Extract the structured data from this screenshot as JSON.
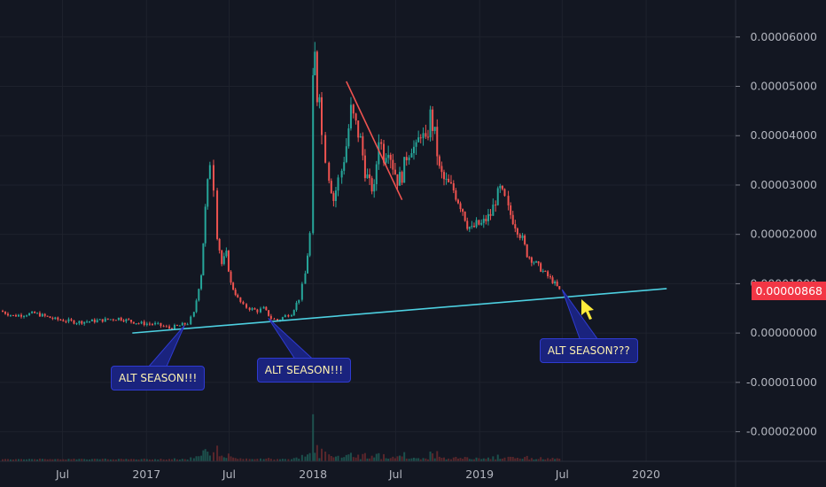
{
  "chart_data": {
    "type": "candlestick",
    "title": "",
    "xlabel": "",
    "ylabel": "",
    "y_axis_position": "right",
    "y_ticks": [
      "0.00006000",
      "0.00005000",
      "0.00004000",
      "0.00003000",
      "0.00002000",
      "0.00001000",
      "0.00000000",
      "-0.00001000",
      "-0.00002000"
    ],
    "y_tick_values": [
      6e-05,
      5e-05,
      4e-05,
      3e-05,
      2e-05,
      1e-05,
      0,
      -1e-05,
      -2e-05
    ],
    "ylim": [
      -2.6e-05,
      6.75e-05
    ],
    "x_ticks": [
      "Jul",
      "2017",
      "Jul",
      "2018",
      "Jul",
      "2019",
      "Jul",
      "2020"
    ],
    "x_tick_dates": [
      "2016-07-01",
      "2017-01-01",
      "2017-07-01",
      "2018-01-01",
      "2018-07-01",
      "2019-01-01",
      "2019-07-01",
      "2020-01-01"
    ],
    "xlim": [
      "2016-02-15",
      "2020-07-15"
    ],
    "grid": true,
    "last_price": "0.00000868",
    "price_series": {
      "dates": [
        "2016-02-15",
        "2016-03-15",
        "2016-05-01",
        "2016-06-15",
        "2016-08-01",
        "2016-09-15",
        "2016-11-01",
        "2016-12-15",
        "2017-01-20",
        "2017-02-20",
        "2017-03-15",
        "2017-04-01",
        "2017-04-15",
        "2017-05-01",
        "2017-05-10",
        "2017-05-20",
        "2017-05-28",
        "2017-06-05",
        "2017-06-15",
        "2017-06-25",
        "2017-07-05",
        "2017-07-20",
        "2017-08-01",
        "2017-08-15",
        "2017-09-01",
        "2017-09-15",
        "2017-10-01",
        "2017-10-15",
        "2017-11-01",
        "2017-11-15",
        "2017-12-01",
        "2017-12-15",
        "2017-12-25",
        "2018-01-01",
        "2018-01-05",
        "2018-01-10",
        "2018-01-15",
        "2018-01-20",
        "2018-01-28",
        "2018-02-05",
        "2018-02-15",
        "2018-02-25",
        "2018-03-05",
        "2018-03-15",
        "2018-03-25",
        "2018-04-05",
        "2018-04-15",
        "2018-04-25",
        "2018-05-05",
        "2018-05-15",
        "2018-05-25",
        "2018-06-05",
        "2018-06-15",
        "2018-06-25",
        "2018-07-05",
        "2018-07-15",
        "2018-07-25",
        "2018-08-05",
        "2018-08-15",
        "2018-08-25",
        "2018-09-05",
        "2018-09-15",
        "2018-09-25",
        "2018-10-05",
        "2018-10-15",
        "2018-10-25",
        "2018-11-05",
        "2018-11-15",
        "2018-11-25",
        "2018-12-05",
        "2018-12-15",
        "2018-12-25",
        "2019-01-05",
        "2019-01-15",
        "2019-01-25",
        "2019-02-05",
        "2019-02-15",
        "2019-02-25",
        "2019-03-05",
        "2019-03-15",
        "2019-03-25",
        "2019-04-05",
        "2019-04-15",
        "2019-04-25",
        "2019-05-05",
        "2019-05-15",
        "2019-05-25",
        "2019-06-05",
        "2019-06-15",
        "2019-06-25"
      ],
      "values": [
        4.5e-06,
        3.5e-06,
        4e-06,
        2.8e-06,
        2.2e-06,
        2.5e-06,
        3e-06,
        2e-06,
        1.8e-06,
        1e-06,
        1.5e-06,
        2e-06,
        4e-06,
        1.2e-05,
        2.5e-05,
        3.5e-05,
        3e-05,
        2e-05,
        1.4e-05,
        1.6e-05,
        1e-05,
        7e-06,
        5.5e-06,
        5e-06,
        4.5e-06,
        5e-06,
        3e-06,
        2.5e-06,
        3.5e-06,
        4e-06,
        7e-06,
        1.2e-05,
        2e-05,
        5e-05,
        5.6e-05,
        4.8e-05,
        5e-05,
        4e-05,
        3.6e-05,
        3.2e-05,
        2.7e-05,
        3.1e-05,
        3.3e-05,
        3.8e-05,
        4.5e-05,
        4.2e-05,
        3.9e-05,
        3.3e-05,
        3e-05,
        2.9e-05,
        4e-05,
        3.6e-05,
        3.8e-05,
        3.4e-05,
        3.1e-05,
        3.2e-05,
        3.6e-05,
        3.8e-05,
        3.7e-05,
        4.1e-05,
        3.8e-05,
        4.4e-05,
        4e-05,
        3.3e-05,
        3.1e-05,
        3e-05,
        2.9e-05,
        2.7e-05,
        2.5e-05,
        2.2e-05,
        2.1e-05,
        2.2e-05,
        2.2e-05,
        2.3e-05,
        2.4e-05,
        2.7e-05,
        2.9e-05,
        2.7e-05,
        2.5e-05,
        2.3e-05,
        2.1e-05,
        1.9e-05,
        1.6e-05,
        1.5e-05,
        1.4e-05,
        1.3e-05,
        1.2e-05,
        1.1e-05,
        1e-05,
        8.7e-06
      ]
    },
    "annotations": [
      {
        "text": "ALT SEASON!!!",
        "date": "2017-03-25",
        "value": 1.5e-06
      },
      {
        "text": "ALT SEASON!!!",
        "date": "2017-09-25",
        "value": 3e-06
      },
      {
        "text": "ALT SEASON???",
        "date": "2019-07-01",
        "value": 8.8e-06
      }
    ],
    "trendlines": [
      {
        "color": "#4dd0e1",
        "from": {
          "date": "2016-12-01",
          "value": 0.0
        },
        "to": {
          "date": "2020-02-15",
          "value": 9e-06
        }
      },
      {
        "color": "#ef5350",
        "from": {
          "date": "2018-03-15",
          "value": 5.1e-05
        },
        "to": {
          "date": "2018-07-15",
          "value": 2.7e-05
        }
      }
    ],
    "colors": {
      "background": "#131722",
      "up": "#26a69a",
      "down": "#ef5350",
      "trendline": "#4dd0e1",
      "price_tag": "#f23645",
      "callout_bg": "#1a237e",
      "callout_text": "#fff3b0",
      "cursor": "#ffeb3b"
    }
  }
}
